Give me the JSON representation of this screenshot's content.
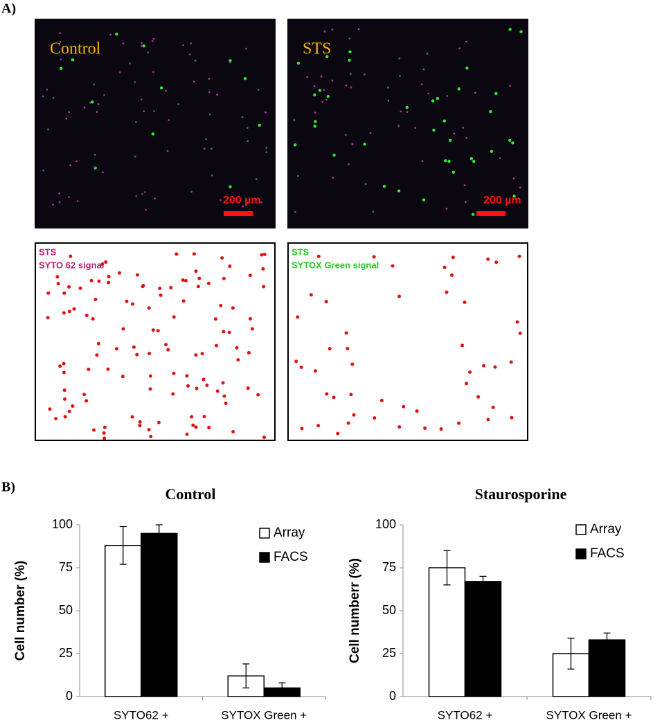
{
  "figure": {
    "panel_a_label": "A)",
    "panel_b_label": "B)",
    "images": [
      {
        "label": "Control",
        "scale_bar": "200 µm"
      },
      {
        "label": "STS",
        "scale_bar": "200 µm"
      },
      {
        "label": "STS",
        "sublabel": "SYTO 62 signal"
      },
      {
        "label": "STS",
        "sublabel": "SYTOX Green signal"
      }
    ]
  },
  "chart_data": [
    {
      "type": "bar",
      "title": "Control",
      "ylabel": "Cell number (%)",
      "categories": [
        "SYTO62 +",
        "SYTOX Green +"
      ],
      "series": [
        {
          "name": "Array",
          "color": "#ffffff",
          "values": [
            88,
            12
          ],
          "errors": [
            11,
            7
          ]
        },
        {
          "name": "FACS",
          "color": "#000000",
          "values": [
            95,
            5
          ],
          "errors": [
            5,
            3
          ]
        }
      ],
      "ylim": [
        0,
        100
      ],
      "yticks": [
        0,
        25,
        50,
        75,
        100
      ],
      "legend": "upper right"
    },
    {
      "type": "bar",
      "title": "Staurosporine",
      "ylabel": "Cell numberr (%)",
      "categories": [
        "SYTO62 +",
        "SYTOX Green +"
      ],
      "series": [
        {
          "name": "Array",
          "color": "#ffffff",
          "values": [
            75,
            25
          ],
          "errors": [
            10,
            9
          ]
        },
        {
          "name": "FACS",
          "color": "#000000",
          "values": [
            67,
            33
          ],
          "errors": [
            3,
            4
          ]
        }
      ],
      "ylim": [
        0,
        100
      ],
      "yticks": [
        0,
        25,
        50,
        75,
        100
      ],
      "legend": "upper right"
    }
  ]
}
